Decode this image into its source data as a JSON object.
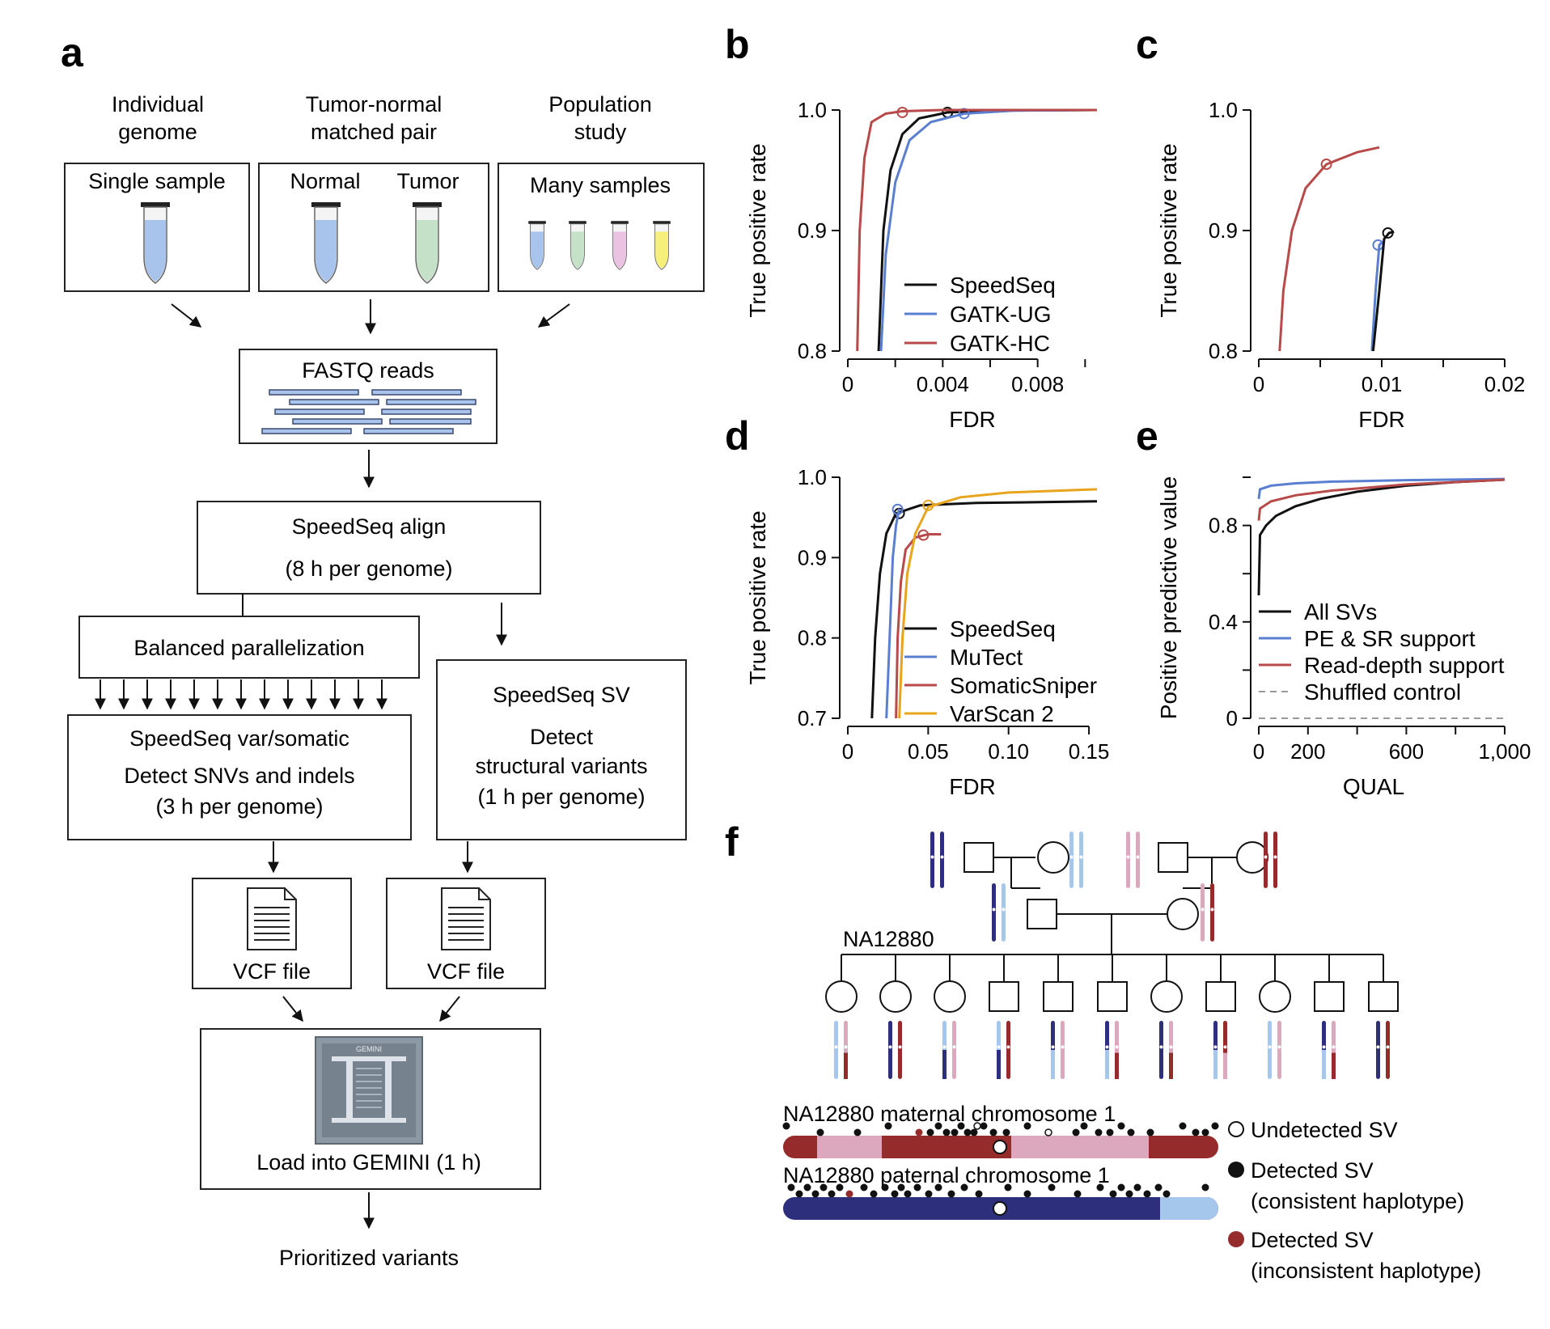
{
  "panels": {
    "a": "a",
    "b": "b",
    "c": "c",
    "d": "d",
    "e": "e",
    "f": "f"
  },
  "panel_a": {
    "study_types": [
      {
        "title": [
          "Individual",
          "genome"
        ],
        "box_label": [
          "Single sample"
        ]
      },
      {
        "title": [
          "Tumor-normal",
          "matched pair"
        ],
        "box_label": [
          "Normal",
          "Tumor"
        ]
      },
      {
        "title": [
          "Population",
          "study"
        ],
        "box_label": [
          "Many samples"
        ]
      }
    ],
    "tube_colors": {
      "blue": "#a9c4ec",
      "green": "#c5e2c8",
      "pink": "#eac3e3",
      "yellow": "#f6f07a"
    },
    "fastq": "FASTQ reads",
    "align": [
      "SpeedSeq align",
      "(8 h per genome)"
    ],
    "parallel": "Balanced parallelization",
    "var": [
      "SpeedSeq var/somatic",
      "Detect SNVs and indels",
      "(3 h per genome)"
    ],
    "sv": [
      "SpeedSeq SV",
      "Detect",
      "structural variants",
      "(1 h per genome)"
    ],
    "vcf": [
      "VCF file",
      "VCF file"
    ],
    "gemini_logo_text": "GEMINI",
    "gemini": "Load into GEMINI (1 h)",
    "output": "Prioritized variants"
  },
  "chart_data": [
    {
      "panel": "b",
      "type": "line",
      "xlabel": "FDR",
      "ylabel": "True positive rate",
      "xlim": [
        0,
        0.0105
      ],
      "ylim": [
        0.8,
        1.0
      ],
      "xticks": [
        "0",
        "0.004",
        "0.008"
      ],
      "yticks": [
        "0.8",
        "0.9",
        "1.0"
      ],
      "legend": "bottom-right",
      "series": [
        {
          "name": "SpeedSeq",
          "color": "#111111",
          "points": [
            [
              0.0013,
              0.8
            ],
            [
              0.0015,
              0.9
            ],
            [
              0.0018,
              0.95
            ],
            [
              0.0023,
              0.98
            ],
            [
              0.003,
              0.993
            ],
            [
              0.0042,
              0.998
            ],
            [
              0.006,
              0.9995
            ],
            [
              0.0105,
              1.0
            ]
          ],
          "marker": [
            0.0042,
            0.998
          ]
        },
        {
          "name": "GATK-UG",
          "color": "#5b7fd0",
          "points": [
            [
              0.0014,
              0.8
            ],
            [
              0.0016,
              0.88
            ],
            [
              0.002,
              0.94
            ],
            [
              0.0026,
              0.975
            ],
            [
              0.0035,
              0.99
            ],
            [
              0.0049,
              0.997
            ],
            [
              0.007,
              0.9995
            ],
            [
              0.0105,
              1.0
            ]
          ],
          "marker": [
            0.0049,
            0.997
          ]
        },
        {
          "name": "GATK-HC",
          "color": "#b84a4a",
          "points": [
            [
              0.0004,
              0.8
            ],
            [
              0.0005,
              0.9
            ],
            [
              0.0007,
              0.96
            ],
            [
              0.001,
              0.99
            ],
            [
              0.0016,
              0.997
            ],
            [
              0.0023,
              0.999
            ],
            [
              0.004,
              1.0
            ],
            [
              0.0105,
              1.0
            ]
          ],
          "marker": [
            0.0023,
            0.998
          ]
        }
      ]
    },
    {
      "panel": "c",
      "type": "line",
      "xlabel": "FDR",
      "ylabel": "True positive rate",
      "xlim": [
        0,
        0.02
      ],
      "ylim": [
        0.8,
        1.0
      ],
      "xticks": [
        "0",
        "0.01",
        "0.02"
      ],
      "yticks": [
        "0.8",
        "0.9",
        "1.0"
      ],
      "series": [
        {
          "name": "GATK-HC",
          "color": "#b84a4a",
          "points": [
            [
              0.0017,
              0.8
            ],
            [
              0.002,
              0.85
            ],
            [
              0.0027,
              0.9
            ],
            [
              0.0038,
              0.935
            ],
            [
              0.0055,
              0.955
            ],
            [
              0.008,
              0.965
            ],
            [
              0.0098,
              0.969
            ]
          ],
          "marker": [
            0.0055,
            0.955
          ]
        },
        {
          "name": "GATK-UG",
          "color": "#5b7fd0",
          "points": [
            [
              0.0092,
              0.8
            ],
            [
              0.0095,
              0.85
            ],
            [
              0.0098,
              0.888
            ],
            [
              0.0101,
              0.891
            ]
          ],
          "marker": [
            0.0097,
            0.888
          ]
        },
        {
          "name": "SpeedSeq",
          "color": "#111111",
          "points": [
            [
              0.0093,
              0.8
            ],
            [
              0.0098,
              0.85
            ],
            [
              0.0102,
              0.893
            ],
            [
              0.0106,
              0.898
            ],
            [
              0.011,
              0.899
            ]
          ],
          "marker": [
            0.0105,
            0.898
          ]
        }
      ]
    },
    {
      "panel": "d",
      "type": "line",
      "xlabel": "FDR",
      "ylabel": "True positive rate",
      "xlim": [
        0,
        0.155
      ],
      "ylim": [
        0.7,
        1.0
      ],
      "xticks": [
        "0",
        "0.05",
        "0.10",
        "0.15"
      ],
      "yticks": [
        "0.7",
        "0.8",
        "0.9",
        "1.0"
      ],
      "legend": "bottom-right",
      "series": [
        {
          "name": "SpeedSeq",
          "color": "#111111",
          "points": [
            [
              0.015,
              0.7
            ],
            [
              0.017,
              0.8
            ],
            [
              0.02,
              0.88
            ],
            [
              0.024,
              0.93
            ],
            [
              0.03,
              0.955
            ],
            [
              0.045,
              0.965
            ],
            [
              0.08,
              0.968
            ],
            [
              0.155,
              0.97
            ]
          ],
          "marker": [
            0.032,
            0.955
          ]
        },
        {
          "name": "MuTect",
          "color": "#5b7fd0",
          "points": [
            [
              0.024,
              0.7
            ],
            [
              0.026,
              0.8
            ],
            [
              0.028,
              0.9
            ],
            [
              0.03,
              0.94
            ],
            [
              0.032,
              0.961
            ]
          ],
          "marker": [
            0.031,
            0.96
          ]
        },
        {
          "name": "SomaticSniper",
          "color": "#b84a4a",
          "points": [
            [
              0.03,
              0.7
            ],
            [
              0.031,
              0.8
            ],
            [
              0.033,
              0.87
            ],
            [
              0.036,
              0.91
            ],
            [
              0.042,
              0.925
            ],
            [
              0.05,
              0.929
            ],
            [
              0.058,
              0.929
            ]
          ],
          "marker": [
            0.047,
            0.928
          ]
        },
        {
          "name": "VarScan 2",
          "color": "#e8a41c",
          "points": [
            [
              0.032,
              0.7
            ],
            [
              0.034,
              0.8
            ],
            [
              0.037,
              0.88
            ],
            [
              0.042,
              0.93
            ],
            [
              0.05,
              0.963
            ],
            [
              0.07,
              0.975
            ],
            [
              0.1,
              0.981
            ],
            [
              0.155,
              0.985
            ]
          ],
          "marker": [
            0.05,
            0.965
          ]
        }
      ]
    },
    {
      "panel": "e",
      "type": "line",
      "xlabel": "QUAL",
      "ylabel": "Positive predictive value",
      "xlim": [
        0,
        1000
      ],
      "ylim": [
        0,
        1.0
      ],
      "xticks": [
        "0",
        "200",
        "600",
        "1,000"
      ],
      "yticks": [
        "0",
        "0.4",
        "0.8"
      ],
      "legend": "bottom-left",
      "series": [
        {
          "name": "All SVs",
          "color": "#111111",
          "points": [
            [
              0,
              0.51
            ],
            [
              5,
              0.76
            ],
            [
              30,
              0.8
            ],
            [
              70,
              0.84
            ],
            [
              150,
              0.88
            ],
            [
              250,
              0.91
            ],
            [
              400,
              0.94
            ],
            [
              600,
              0.965
            ],
            [
              800,
              0.98
            ],
            [
              1000,
              0.99
            ]
          ]
        },
        {
          "name": "PE & SR support",
          "color": "#5b7fd0",
          "points": [
            [
              0,
              0.91
            ],
            [
              5,
              0.95
            ],
            [
              50,
              0.965
            ],
            [
              150,
              0.975
            ],
            [
              300,
              0.982
            ],
            [
              600,
              0.988
            ],
            [
              1000,
              0.993
            ]
          ]
        },
        {
          "name": "Read-depth support",
          "color": "#b84a4a",
          "points": [
            [
              0,
              0.82
            ],
            [
              5,
              0.87
            ],
            [
              50,
              0.9
            ],
            [
              150,
              0.925
            ],
            [
              300,
              0.945
            ],
            [
              600,
              0.97
            ],
            [
              1000,
              0.99
            ]
          ]
        },
        {
          "name": "Shuffled control",
          "color": "#9a9a9a",
          "dashed": true,
          "points": [
            [
              0,
              0.0
            ],
            [
              1000,
              0.0
            ]
          ]
        }
      ]
    }
  ],
  "panel_f": {
    "proband": "NA12880",
    "chrom_colors": {
      "dark_blue": "#2d2f7d",
      "light_blue": "#a5c7ec",
      "dark_red": "#962b2b",
      "pink": "#dba8bd"
    },
    "maternal_label": "NA12880 maternal chromosome 1",
    "paternal_label": "NA12880 paternal chromosome 1",
    "legend": [
      "Undetected SV",
      "Detected SV",
      "(consistent haplotype)",
      "Detected SV",
      "(inconsistent haplotype)"
    ],
    "children_sex": [
      "female",
      "female",
      "female",
      "male",
      "male",
      "male",
      "female",
      "male",
      "female",
      "male",
      "male"
    ]
  }
}
